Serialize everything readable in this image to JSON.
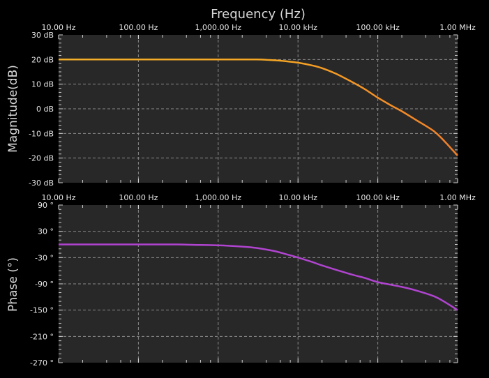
{
  "chart_data": [
    {
      "type": "line",
      "title": "Frequency (Hz)",
      "xlabel": "Frequency (Hz)",
      "ylabel": "Magnitude(dB)",
      "xscale": "log",
      "xlim": [
        10,
        1000000
      ],
      "ylim": [
        -30,
        30
      ],
      "x_tick_labels": [
        "10.00 Hz",
        "100.00 Hz",
        "1,000.00 Hz",
        "10.00 kHz",
        "100.00 kHz",
        "1.00 MHz"
      ],
      "y_tick_values": [
        30,
        20,
        10,
        0,
        -10,
        -20,
        -30
      ],
      "y_tick_labels": [
        "30 dB",
        "20 dB",
        "10 dB",
        "0 dB",
        "-10 dB",
        "-20 dB",
        "-30 dB"
      ],
      "grid": true,
      "series": [
        {
          "name": "Magnitude",
          "color": "#f5a623",
          "color_end": "#f07f2a",
          "x": [
            10,
            100,
            1000,
            3000,
            5000,
            7000,
            10000,
            15000,
            20000,
            30000,
            50000,
            70000,
            100000,
            150000,
            200000,
            300000,
            500000,
            700000,
            1000000
          ],
          "values": [
            20,
            20,
            20,
            20,
            19.7,
            19.3,
            18.7,
            17.6,
            16.5,
            14.2,
            10.5,
            7.8,
            4.5,
            1.2,
            -1.0,
            -4.5,
            -9.0,
            -13.5,
            -19.0
          ]
        }
      ]
    },
    {
      "type": "line",
      "xlabel": "",
      "ylabel": "Phase (°)",
      "xscale": "log",
      "xlim": [
        10,
        1000000
      ],
      "ylim": [
        -270,
        90
      ],
      "x_tick_labels": [
        "10.00 Hz",
        "100.00 Hz",
        "1,000.00 Hz",
        "10.00 kHz",
        "100.00 kHz",
        "1.00 MHz"
      ],
      "y_tick_values": [
        90,
        30,
        -30,
        -90,
        -150,
        -210,
        -270
      ],
      "y_tick_labels": [
        "90 °",
        "30 °",
        "-30 °",
        "-90 °",
        "-150 °",
        "-210 °",
        "-270 °"
      ],
      "grid": true,
      "series": [
        {
          "name": "Phase",
          "color": "#b044d0",
          "x": [
            10,
            100,
            300,
            500,
            1000,
            2000,
            3000,
            5000,
            7000,
            10000,
            15000,
            20000,
            30000,
            50000,
            70000,
            100000,
            200000,
            300000,
            500000,
            700000,
            1000000
          ],
          "values": [
            0,
            0,
            0,
            -1,
            -2,
            -5,
            -8,
            -15,
            -22,
            -30,
            -40,
            -48,
            -58,
            -70,
            -77,
            -86,
            -97,
            -105,
            -118,
            -132,
            -150
          ]
        }
      ]
    }
  ],
  "labels": {
    "title": "Frequency (Hz)",
    "mag_ylabel": "Magnitude(dB)",
    "phase_ylabel": "Phase (°)"
  }
}
